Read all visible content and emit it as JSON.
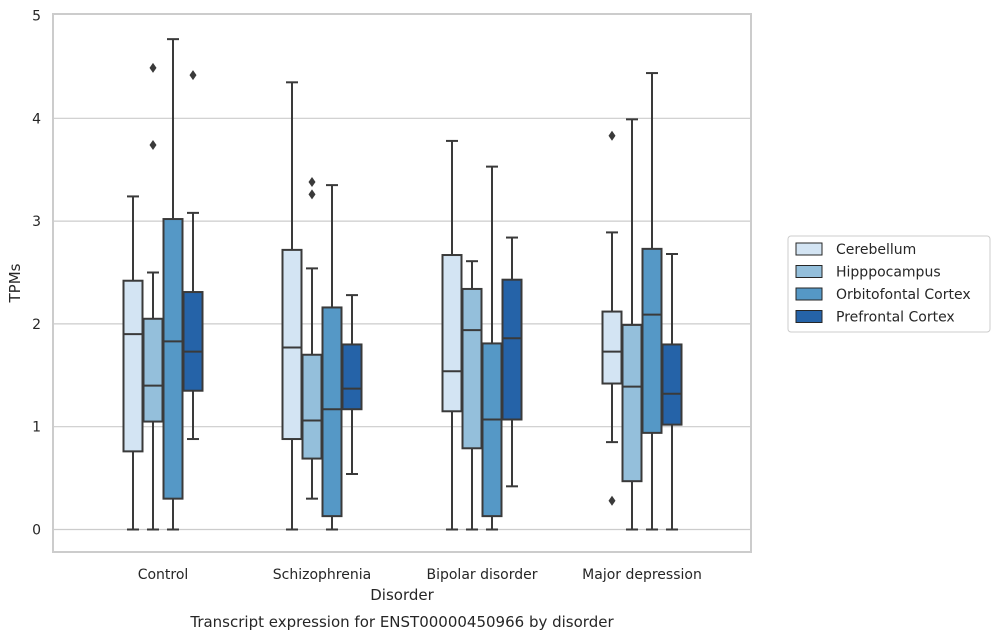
{
  "chart_data": {
    "type": "box",
    "caption": "Transcript expression for ENST00000450966 by disorder",
    "xlabel": "Disorder",
    "ylabel": "TPMs",
    "ylim": [
      -0.22,
      5
    ],
    "yticks": [
      0,
      1,
      2,
      3,
      4,
      5
    ],
    "grid": "horizontal",
    "legend_position": "right-center",
    "categories": [
      "Control",
      "Schizophrenia",
      "Bipolar disorder",
      "Major depression"
    ],
    "series": [
      {
        "name": "Cerebellum",
        "color": "#d3e4f3",
        "boxes": [
          {
            "whisker_low": 0.0,
            "q1": 0.76,
            "median": 1.9,
            "q3": 2.42,
            "whisker_high": 3.24,
            "outliers": []
          },
          {
            "whisker_low": 0.0,
            "q1": 0.88,
            "median": 1.77,
            "q3": 2.72,
            "whisker_high": 4.35,
            "outliers": []
          },
          {
            "whisker_low": 0.0,
            "q1": 1.15,
            "median": 1.54,
            "q3": 2.67,
            "whisker_high": 3.78,
            "outliers": []
          },
          {
            "whisker_low": 0.85,
            "q1": 1.42,
            "median": 1.73,
            "q3": 2.12,
            "whisker_high": 2.89,
            "outliers": [
              0.28,
              3.83
            ]
          }
        ]
      },
      {
        "name": "Hipppocampus",
        "color": "#94bfdb",
        "boxes": [
          {
            "whisker_low": 0.0,
            "q1": 1.05,
            "median": 1.4,
            "q3": 2.05,
            "whisker_high": 2.5,
            "outliers": [
              3.74,
              4.49
            ]
          },
          {
            "whisker_low": 0.3,
            "q1": 0.69,
            "median": 1.06,
            "q3": 1.7,
            "whisker_high": 2.54,
            "outliers": [
              3.26,
              3.38
            ]
          },
          {
            "whisker_low": 0.0,
            "q1": 0.79,
            "median": 1.94,
            "q3": 2.34,
            "whisker_high": 2.61,
            "outliers": []
          },
          {
            "whisker_low": 0.0,
            "q1": 0.47,
            "median": 1.39,
            "q3": 1.99,
            "whisker_high": 3.99,
            "outliers": []
          }
        ]
      },
      {
        "name": "Orbitofontal Cortex",
        "color": "#5598c6",
        "boxes": [
          {
            "whisker_low": 0.0,
            "q1": 0.3,
            "median": 1.83,
            "q3": 3.02,
            "whisker_high": 4.77,
            "outliers": []
          },
          {
            "whisker_low": 0.0,
            "q1": 0.13,
            "median": 1.17,
            "q3": 2.16,
            "whisker_high": 3.35,
            "outliers": []
          },
          {
            "whisker_low": 0.0,
            "q1": 0.13,
            "median": 1.07,
            "q3": 1.81,
            "whisker_high": 3.53,
            "outliers": []
          },
          {
            "whisker_low": 0.0,
            "q1": 0.94,
            "median": 2.09,
            "q3": 2.73,
            "whisker_high": 4.44,
            "outliers": []
          }
        ]
      },
      {
        "name": "Prefrontal Cortex",
        "color": "#2563a8",
        "boxes": [
          {
            "whisker_low": 0.88,
            "q1": 1.35,
            "median": 1.73,
            "q3": 2.31,
            "whisker_high": 3.08,
            "outliers": [
              4.42
            ]
          },
          {
            "whisker_low": 0.54,
            "q1": 1.17,
            "median": 1.37,
            "q3": 1.8,
            "whisker_high": 2.28,
            "outliers": []
          },
          {
            "whisker_low": 0.42,
            "q1": 1.07,
            "median": 1.86,
            "q3": 2.43,
            "whisker_high": 2.84,
            "outliers": []
          },
          {
            "whisker_low": 0.0,
            "q1": 1.02,
            "median": 1.32,
            "q3": 1.8,
            "whisker_high": 2.68,
            "outliers": []
          }
        ]
      }
    ]
  }
}
